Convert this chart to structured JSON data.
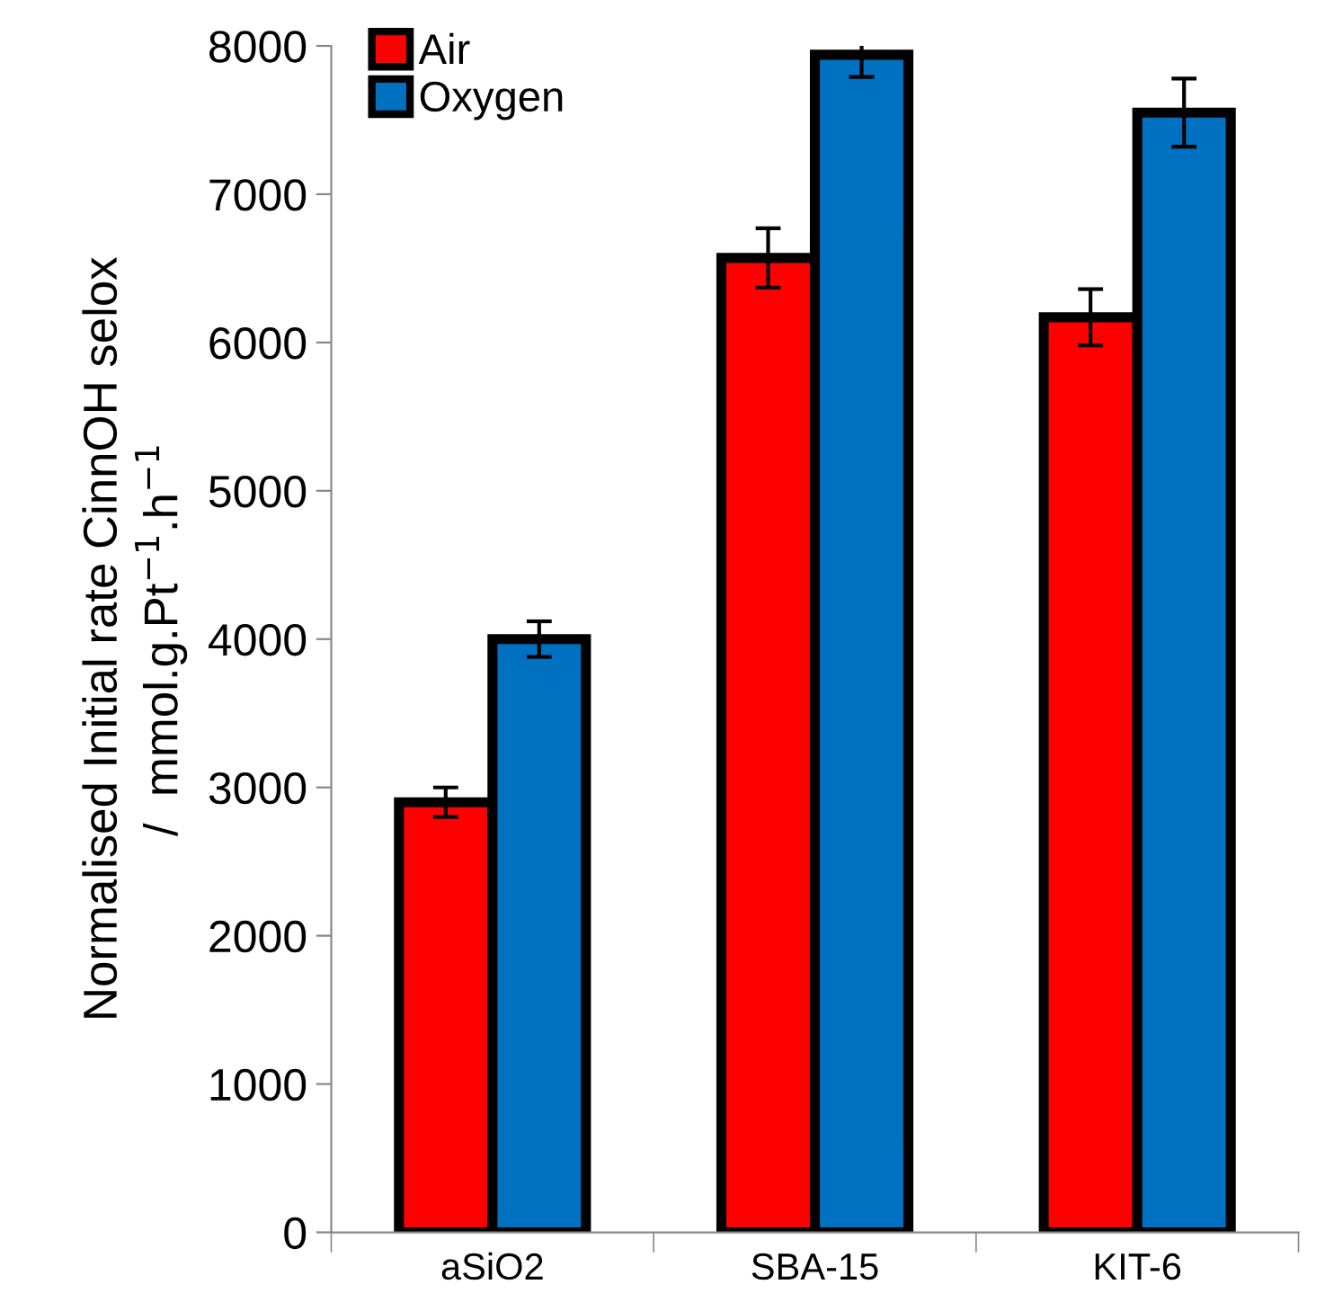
{
  "chart_data": {
    "type": "bar",
    "ylabel": "Normalised Initial rate CinnOH selox\n/  mmol.g.Pt$^{−1}$.h$^{−1}$",
    "categories": [
      "aSiO2",
      "SBA-15",
      "KIT-6"
    ],
    "series": [
      {
        "name": "Air",
        "color": "#ff0000",
        "values": [
          2900,
          6570,
          6170
        ],
        "errors": [
          100,
          200,
          190
        ]
      },
      {
        "name": "Oxygen",
        "color": "#0070c0",
        "values": [
          4000,
          7940,
          7550
        ],
        "errors": [
          120,
          150,
          230
        ]
      }
    ],
    "ylim": [
      0,
      8000
    ],
    "yticks": [
      0,
      1000,
      2000,
      3000,
      4000,
      5000,
      6000,
      7000,
      8000
    ],
    "grid": false,
    "legend": "top left"
  }
}
